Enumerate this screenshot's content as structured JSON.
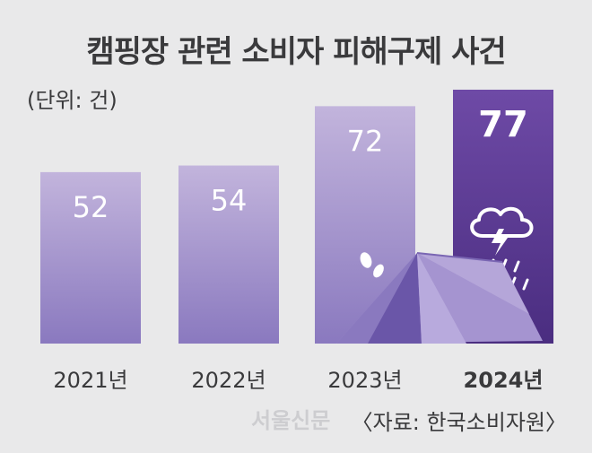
{
  "title": "캠핑장 관련 소비자 피해구제 사건",
  "unit": "(단위: 건)",
  "source": "〈자료: 한국소비자원〉",
  "watermark": "서울신문",
  "colors": {
    "bar_top": "#c2b4dc",
    "bar_bottom": "#8a79bf",
    "highlight_top": "#6e4aa6",
    "highlight_bottom": "#4a2d80",
    "value_text": "#ffffff",
    "label_text": "#3a3a3c",
    "tent": "#a594d0",
    "tent_dark": "#7a66b3"
  },
  "icons": [
    "storm-cloud-icon",
    "tent-icon",
    "water-splash-icon"
  ],
  "chart_data": {
    "type": "bar",
    "categories": [
      "2021년",
      "2022년",
      "2023년",
      "2024년"
    ],
    "values": [
      52,
      54,
      72,
      77
    ],
    "highlight_index": 3,
    "title": "캠핑장 관련 소비자 피해구제 사건",
    "ylabel": "",
    "xlabel": "",
    "ylim": [
      0,
      77
    ]
  }
}
